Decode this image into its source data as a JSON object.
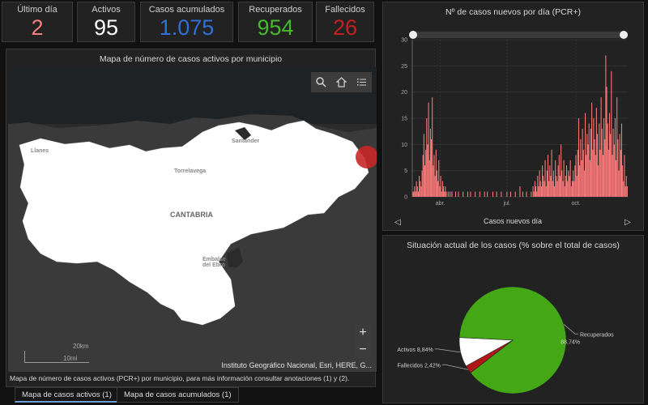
{
  "stats": [
    {
      "label": "Último día",
      "value": "2",
      "color": "#f08080"
    },
    {
      "label": "Activos",
      "value": "95",
      "color": "#ffffff"
    },
    {
      "label": "Casos acumulados",
      "value": "1.075",
      "color": "#2f6fd8"
    },
    {
      "label": "Recuperados",
      "value": "954",
      "color": "#44b82e"
    },
    {
      "label": "Fallecidos",
      "value": "26",
      "color": "#c42020"
    }
  ],
  "map": {
    "title": "Mapa de número de casos activos por municipio",
    "region_label": "CANTABRIA",
    "place_labels": [
      "Llanes",
      "Santander",
      "Torrelavega",
      "Embalse del Ebro"
    ],
    "scale_km": "20km",
    "scale_mi": "10mi",
    "attribution": "Instituto Geográfico Nacional, Esri, HERE, G...",
    "zoom_in": "+",
    "zoom_out": "−",
    "description": "Mapa de número de casos activos (PCR+) por municipio, para más información consultar anotaciones (1) y (2).",
    "colors": {
      "land": "#ffffff",
      "sea": "#2e2e2e",
      "neighbor": "#3a3a3a",
      "hotspot": "#c82828"
    }
  },
  "tabs": [
    "Mapa de casos activos (1)",
    "Mapa de casos acumulados (1)"
  ],
  "bar_chart": {
    "title": "Nº de casos nuevos por día (PCR+)",
    "footer": "Casos nuevos día",
    "nav_prev": "◁",
    "nav_next": "▷",
    "color": "#ff7b7b"
  },
  "pie": {
    "title": "Situación actual de los casos (% sobre el total de casos)"
  },
  "chart_data": [
    {
      "type": "bar",
      "title": "Nº de casos nuevos por día (PCR+)",
      "xlabel": "Casos nuevos día",
      "ylabel": "",
      "ylim": [
        0,
        30
      ],
      "yticks": [
        0,
        5,
        10,
        15,
        20,
        25,
        30
      ],
      "xtick_labels": [
        "abr.",
        "jul.",
        "oct."
      ],
      "grid": true,
      "values": [
        1,
        1,
        2,
        1,
        3,
        2,
        1,
        4,
        3,
        2,
        5,
        8,
        12,
        6,
        9,
        15,
        10,
        18,
        7,
        13,
        11,
        19,
        6,
        8,
        4,
        9,
        5,
        3,
        7,
        2,
        4,
        1,
        3,
        2,
        1,
        2,
        1,
        0,
        1,
        0,
        1,
        0,
        1,
        0,
        0,
        0,
        1,
        0,
        0,
        1,
        0,
        0,
        0,
        0,
        1,
        0,
        0,
        0,
        0,
        1,
        0,
        0,
        1,
        0,
        0,
        0,
        0,
        1,
        0,
        0,
        0,
        0,
        1,
        0,
        0,
        0,
        0,
        1,
        0,
        0,
        1,
        0,
        0,
        0,
        0,
        0,
        1,
        0,
        0,
        0,
        1,
        0,
        0,
        0,
        0,
        1,
        0,
        0,
        0,
        0,
        0,
        1,
        0,
        0,
        0,
        1,
        0,
        0,
        0,
        0,
        1,
        0,
        0,
        0,
        0,
        2,
        0,
        0,
        1,
        0,
        0,
        0,
        1,
        0,
        0,
        0,
        0,
        1,
        0,
        2,
        1,
        3,
        2,
        1,
        4,
        2,
        5,
        3,
        2,
        6,
        4,
        3,
        7,
        2,
        5,
        8,
        3,
        6,
        4,
        9,
        3,
        5,
        2,
        7,
        4,
        3,
        6,
        8,
        4,
        10,
        5,
        3,
        7,
        2,
        4,
        6,
        3,
        5,
        4,
        7,
        2,
        3,
        5,
        3,
        6,
        8,
        4,
        9,
        15,
        6,
        11,
        7,
        13,
        9,
        5,
        16,
        8,
        12,
        10,
        14,
        7,
        13,
        18,
        9,
        15,
        11,
        8,
        17,
        12,
        6,
        14,
        9,
        19,
        13,
        8,
        15,
        11,
        27,
        21,
        14,
        9,
        16,
        12,
        24,
        8,
        13,
        10,
        15,
        7,
        19,
        11,
        5,
        12,
        9,
        14,
        6,
        3,
        8,
        2,
        4,
        2
      ]
    },
    {
      "type": "pie",
      "title": "Situación actual de los casos (% sobre el total de casos)",
      "slices": [
        {
          "label": "Recuperados",
          "value": 88.74,
          "display": "88,74%",
          "color": "#44a816"
        },
        {
          "label": "Fallecidos",
          "value": 2.42,
          "display": "2,42%",
          "color": "#b01818"
        },
        {
          "label": "Activos",
          "value": 8.84,
          "display": "8,84%",
          "color": "#ffffff"
        }
      ]
    }
  ]
}
